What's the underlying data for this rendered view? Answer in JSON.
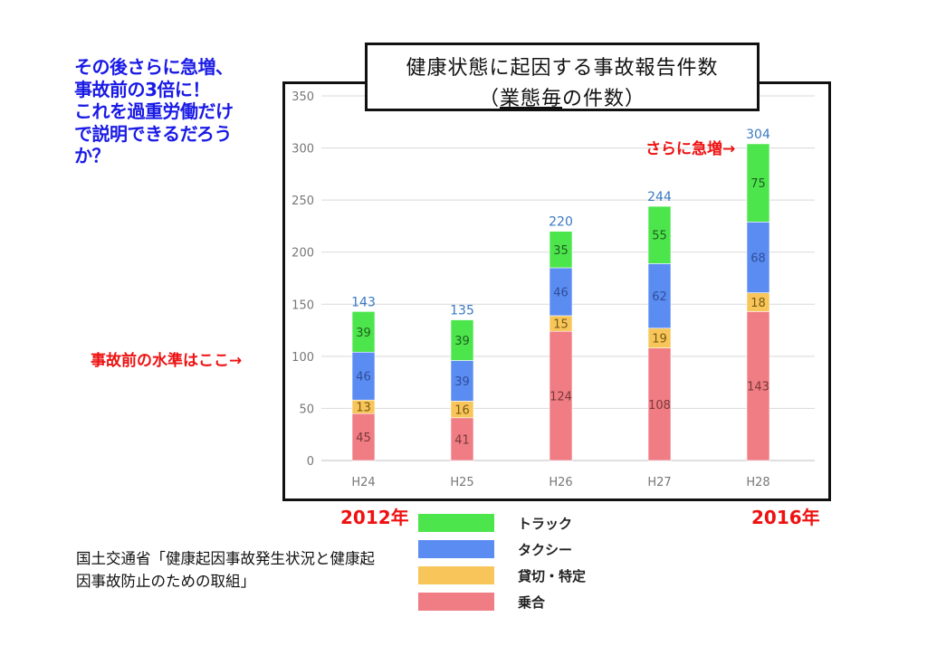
{
  "note": {
    "lines": [
      "その後さらに急増、",
      "事故前の3倍に！",
      "これを過重労働だけ",
      "で説明できるだろう",
      "か？"
    ]
  },
  "labels": {
    "baseline": "事故前の水準はここ→",
    "surge": "さらに急増→",
    "year_start": "2012年",
    "year_end": "2016年"
  },
  "chart_title": {
    "line1": "健康状態に起因する事故報告件数",
    "line2_open": "（",
    "line2_underlined": "業態毎",
    "line2_rest": "の件数）"
  },
  "source": "国土交通省「健康起因事故発生状況と健康起因事故防止のための取組」",
  "colors": {
    "truck": "#4ce64c",
    "taxi": "#5b8cf2",
    "charter": "#f7c55a",
    "bus": "#f07c84",
    "total_label": "#3a78c2",
    "grid": "#d9d9d9",
    "axis_text": "#777777"
  },
  "chart_data": {
    "type": "bar",
    "stacked": true,
    "categories": [
      "H24",
      "H25",
      "H26",
      "H27",
      "H28"
    ],
    "ylim": [
      0,
      350
    ],
    "yticks": [
      0,
      50,
      100,
      150,
      200,
      250,
      300,
      350
    ],
    "grid": true,
    "legend_position": "bottom",
    "series": [
      {
        "name": "乗合",
        "key": "bus",
        "values": [
          45,
          41,
          124,
          108,
          143
        ]
      },
      {
        "name": "貸切・特定",
        "key": "charter",
        "values": [
          13,
          16,
          15,
          19,
          18
        ]
      },
      {
        "name": "タクシー",
        "key": "taxi",
        "values": [
          46,
          39,
          46,
          62,
          68
        ]
      },
      {
        "name": "トラック",
        "key": "truck",
        "values": [
          39,
          39,
          35,
          55,
          75
        ]
      }
    ],
    "totals": [
      143,
      135,
      220,
      244,
      304
    ]
  }
}
